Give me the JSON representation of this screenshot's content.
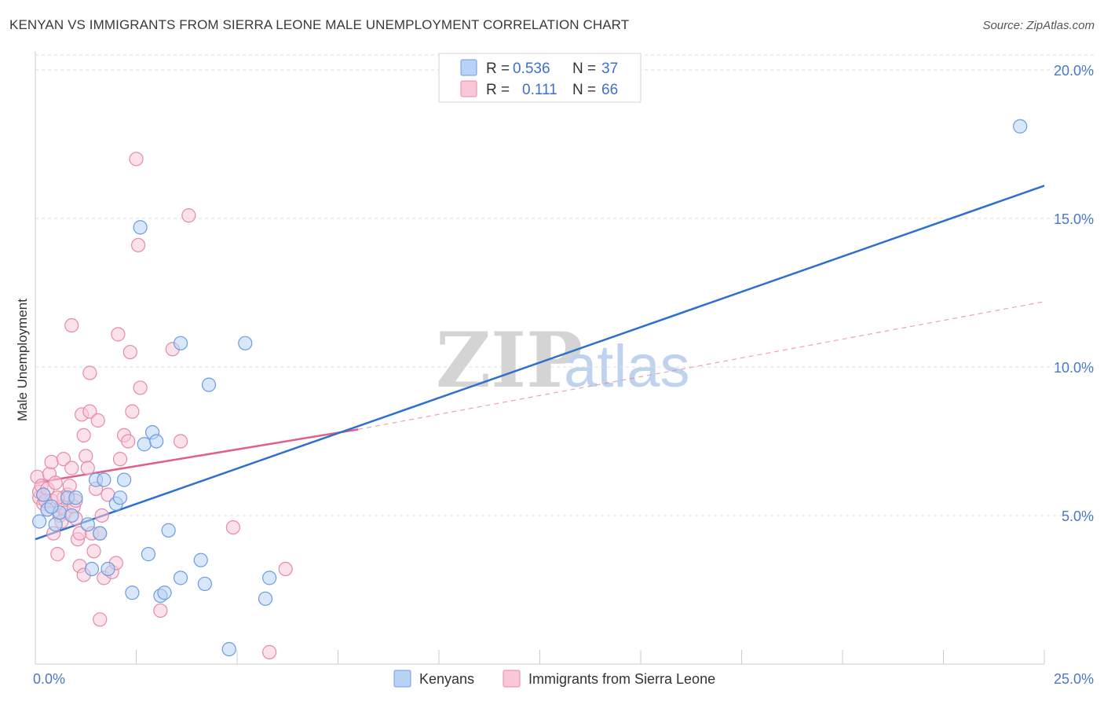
{
  "title": "KENYAN VS IMMIGRANTS FROM SIERRA LEONE MALE UNEMPLOYMENT CORRELATION CHART",
  "source": "Source: ZipAtlas.com",
  "watermark": {
    "zip": "ZIP",
    "atlas": "atlas"
  },
  "chart_data": {
    "type": "scatter",
    "title": "KENYAN VS IMMIGRANTS FROM SIERRA LEONE MALE UNEMPLOYMENT CORRELATION CHART",
    "xlabel": "",
    "ylabel": "Male Unemployment",
    "xlim": [
      0,
      25
    ],
    "ylim": [
      0,
      20.5
    ],
    "x_tick_labels": [
      "0.0%",
      "25.0%"
    ],
    "y_ticks": [
      5,
      10,
      15,
      20
    ],
    "y_tick_labels": [
      "5.0%",
      "10.0%",
      "15.0%",
      "20.0%"
    ],
    "grid": "horizontal dashed",
    "legend_position": "top-center",
    "legend": [
      {
        "r_label": "R =",
        "r_value": "0.536",
        "n_label": "N =",
        "n_value": "37"
      },
      {
        "r_label": "R =",
        "r_value": "0.111",
        "n_label": "N =",
        "n_value": "66"
      }
    ],
    "series": [
      {
        "name": "Kenyans",
        "color": "#6a9de0",
        "fill": "#b9d3f5",
        "trend": {
          "x0": 0,
          "y0": 4.2,
          "x1": 25,
          "y1": 16.1,
          "style": "solid"
        },
        "points": [
          [
            0.1,
            4.8
          ],
          [
            0.2,
            5.7
          ],
          [
            0.3,
            5.2
          ],
          [
            0.5,
            4.7
          ],
          [
            0.6,
            5.1
          ],
          [
            0.8,
            5.6
          ],
          [
            0.9,
            5.0
          ],
          [
            1.0,
            5.6
          ],
          [
            1.3,
            4.7
          ],
          [
            1.6,
            4.4
          ],
          [
            1.4,
            3.2
          ],
          [
            1.5,
            6.2
          ],
          [
            1.7,
            6.2
          ],
          [
            1.8,
            3.2
          ],
          [
            2.0,
            5.4
          ],
          [
            2.1,
            5.6
          ],
          [
            2.2,
            6.2
          ],
          [
            2.4,
            2.4
          ],
          [
            2.6,
            14.7
          ],
          [
            2.7,
            7.4
          ],
          [
            2.8,
            3.7
          ],
          [
            2.9,
            7.8
          ],
          [
            3.0,
            7.5
          ],
          [
            3.1,
            2.3
          ],
          [
            3.2,
            2.4
          ],
          [
            3.3,
            4.5
          ],
          [
            3.6,
            2.9
          ],
          [
            3.6,
            10.8
          ],
          [
            4.1,
            3.5
          ],
          [
            4.2,
            2.7
          ],
          [
            4.3,
            9.4
          ],
          [
            4.8,
            0.5
          ],
          [
            5.2,
            10.8
          ],
          [
            5.7,
            2.2
          ],
          [
            5.8,
            2.9
          ],
          [
            24.4,
            18.1
          ],
          [
            0.4,
            5.3
          ]
        ]
      },
      {
        "name": "Immigrants from Sierra Leone",
        "color": "#e889a8",
        "fill": "#f8c8d8",
        "trend": {
          "x0": 0,
          "y0": 6.1,
          "x1": 8.0,
          "y1": 7.9,
          "style": "solid",
          "ext_x1": 25,
          "ext_y1": 12.2,
          "ext_style": "dashed"
        },
        "points": [
          [
            0.05,
            6.3
          ],
          [
            0.1,
            5.6
          ],
          [
            0.1,
            5.8
          ],
          [
            0.15,
            6.0
          ],
          [
            0.2,
            5.4
          ],
          [
            0.2,
            5.7
          ],
          [
            0.3,
            5.2
          ],
          [
            0.3,
            5.9
          ],
          [
            0.35,
            6.4
          ],
          [
            0.4,
            6.8
          ],
          [
            0.4,
            5.5
          ],
          [
            0.45,
            4.4
          ],
          [
            0.5,
            6.1
          ],
          [
            0.55,
            3.7
          ],
          [
            0.6,
            5.0
          ],
          [
            0.65,
            5.3
          ],
          [
            0.7,
            5.6
          ],
          [
            0.7,
            6.9
          ],
          [
            0.75,
            5.1
          ],
          [
            0.8,
            5.7
          ],
          [
            0.85,
            6.0
          ],
          [
            0.9,
            11.4
          ],
          [
            0.9,
            6.6
          ],
          [
            0.95,
            5.3
          ],
          [
            1.0,
            4.9
          ],
          [
            1.0,
            5.5
          ],
          [
            1.05,
            4.2
          ],
          [
            1.1,
            4.4
          ],
          [
            1.1,
            3.3
          ],
          [
            1.15,
            8.4
          ],
          [
            1.2,
            3.0
          ],
          [
            1.2,
            7.7
          ],
          [
            1.25,
            7.0
          ],
          [
            1.3,
            6.6
          ],
          [
            1.35,
            8.5
          ],
          [
            1.4,
            4.4
          ],
          [
            1.45,
            3.8
          ],
          [
            1.5,
            5.9
          ],
          [
            1.55,
            8.2
          ],
          [
            1.6,
            4.4
          ],
          [
            1.6,
            1.5
          ],
          [
            1.65,
            5.0
          ],
          [
            1.7,
            2.9
          ],
          [
            1.8,
            5.7
          ],
          [
            1.9,
            3.1
          ],
          [
            2.0,
            3.4
          ],
          [
            2.05,
            11.1
          ],
          [
            2.1,
            6.9
          ],
          [
            2.2,
            7.7
          ],
          [
            2.35,
            10.5
          ],
          [
            2.4,
            8.5
          ],
          [
            2.5,
            17.0
          ],
          [
            2.55,
            14.1
          ],
          [
            2.6,
            9.3
          ],
          [
            3.1,
            1.8
          ],
          [
            3.4,
            10.6
          ],
          [
            3.6,
            7.5
          ],
          [
            3.8,
            15.1
          ],
          [
            4.9,
            4.6
          ],
          [
            5.8,
            0.4
          ],
          [
            6.2,
            3.2
          ],
          [
            2.3,
            7.5
          ],
          [
            1.35,
            9.8
          ],
          [
            0.25,
            5.5
          ],
          [
            0.55,
            5.6
          ],
          [
            0.65,
            4.8
          ]
        ]
      }
    ]
  },
  "bottom_legend": {
    "items": [
      {
        "label": "Kenyans"
      },
      {
        "label": "Immigrants from Sierra Leone"
      }
    ]
  }
}
